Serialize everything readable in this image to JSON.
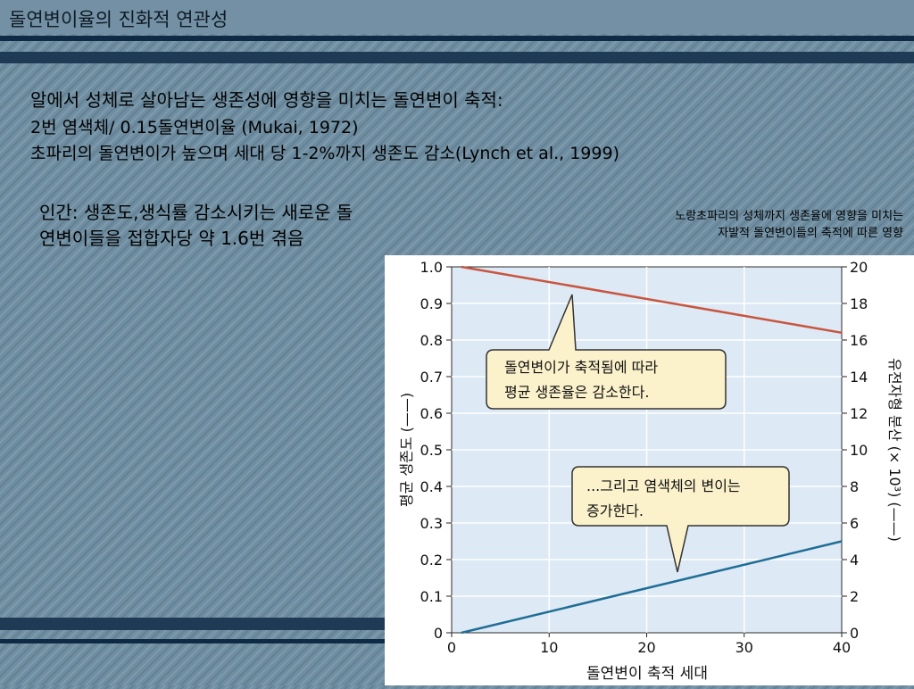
{
  "slide": {
    "title": "돌연변이율의 진화적 연관성",
    "line1": "알에서 성체로 살아남는 생존성에 영향을 미치는 돌연변이 축적:",
    "line2": "2번 염색체/ 0.15돌연변이율 (Mukai, 1972)",
    "line3": "초파리의 돌연변이가 높으며 세대 당 1-2%까지 생존도 감소(Lynch et al., 1999)",
    "human_note": "인간: 생존도,생식률 감소시키는 새로운 돌연변이들을 접합자당 약 1.6번 겪음",
    "figure_caption_1": "노랑초파리의 성체까지 생존율에 영향을 미치는",
    "figure_caption_2": "자발적 돌연변이들의 축적에 따른 영향"
  },
  "colors": {
    "survival_line": "#c8553f",
    "variance_line": "#1f6d96",
    "plot_bg": "#dde9f4",
    "callout_bg": "#fbf1cb"
  },
  "chart_data": {
    "type": "line",
    "xlabel": "돌연변이 축적 세대",
    "ylabel_left": "평균 생존도 (——)",
    "ylabel_right": "유전자형 분산 (× 10³) (——)",
    "x_ticks": [
      "0",
      "10",
      "20",
      "30",
      "40"
    ],
    "y_left_ticks": [
      "0",
      "0.1",
      "0.2",
      "0.3",
      "0.4",
      "0.5",
      "0.6",
      "0.7",
      "0.8",
      "0.9",
      "1.0"
    ],
    "y_right_ticks": [
      "0",
      "2",
      "4",
      "6",
      "8",
      "10",
      "12",
      "14",
      "16",
      "18",
      "20"
    ],
    "xlim": [
      0,
      40
    ],
    "ylim_left": [
      0,
      1.0
    ],
    "ylim_right": [
      0,
      20
    ],
    "grid": true,
    "series": [
      {
        "axis": "left",
        "x": [
          1,
          40
        ],
        "y": [
          1.0,
          0.82
        ]
      },
      {
        "axis": "right",
        "x": [
          1,
          40
        ],
        "y": [
          0,
          5
        ]
      }
    ],
    "annotations": [
      {
        "text_line1": "돌연변이가 축적됨에 따라",
        "text_line2": "평균 생존율은 감소한다."
      },
      {
        "text_line1": "...그리고 염색체의 변이는",
        "text_line2": "증가한다."
      }
    ]
  }
}
